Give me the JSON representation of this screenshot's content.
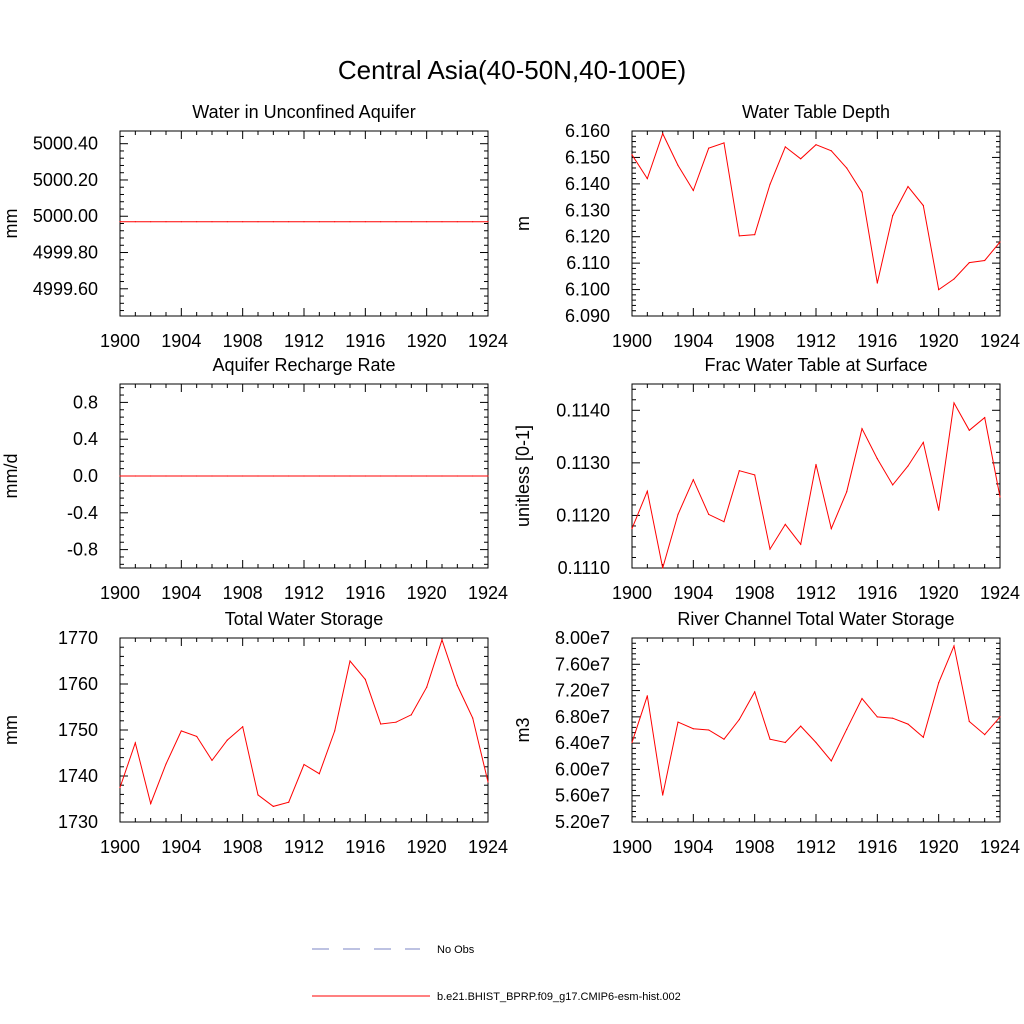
{
  "figure": {
    "title": "Central Asia(40-50N,40-100E)"
  },
  "legend": [
    {
      "label": "No Obs",
      "color": "#7b86c6",
      "dash": true
    },
    {
      "label": "b.e21.BHIST_BPRP.f09_g17.CMIP6-esm-hist.002",
      "color": "#ff0000",
      "dash": false
    }
  ],
  "colors": {
    "series": "#ff0000",
    "obs": "#7b86c6"
  },
  "chart_data": [
    {
      "type": "line",
      "title": "Water in Unconfined Aquifer",
      "xlabel": "",
      "ylabel": "mm",
      "xlim": [
        1900,
        1924
      ],
      "ylim": [
        4999.45,
        5000.47
      ],
      "xticks": [
        1900,
        1904,
        1908,
        1912,
        1916,
        1920,
        1924
      ],
      "xtick_labels": [
        "1900",
        "1904",
        "1908",
        "1912",
        "1916",
        "1920",
        "1924"
      ],
      "yticks": [
        4999.6,
        4999.8,
        5000.0,
        5000.2,
        5000.4
      ],
      "ytick_labels": [
        "4999.60",
        "4999.80",
        "5000.00",
        "5000.20",
        "5000.40"
      ],
      "series": [
        {
          "x": [
            1900,
            1901,
            1902,
            1903,
            1904,
            1905,
            1906,
            1907,
            1908,
            1909,
            1910,
            1911,
            1912,
            1913,
            1914,
            1915,
            1916,
            1917,
            1918,
            1919,
            1920,
            1921,
            1922,
            1923,
            1924
          ],
          "values": [
            4999.97,
            4999.97,
            4999.97,
            4999.97,
            4999.97,
            4999.97,
            4999.97,
            4999.97,
            4999.97,
            4999.97,
            4999.97,
            4999.97,
            4999.97,
            4999.97,
            4999.97,
            4999.97,
            4999.97,
            4999.97,
            4999.97,
            4999.97,
            4999.97,
            4999.97,
            4999.97,
            4999.97,
            4999.97
          ]
        }
      ]
    },
    {
      "type": "line",
      "title": "Water Table Depth",
      "xlabel": "",
      "ylabel": "m",
      "xlim": [
        1900,
        1924
      ],
      "ylim": [
        6.09,
        6.16
      ],
      "xticks": [
        1900,
        1904,
        1908,
        1912,
        1916,
        1920,
        1924
      ],
      "xtick_labels": [
        "1900",
        "1904",
        "1908",
        "1912",
        "1916",
        "1920",
        "1924"
      ],
      "yticks": [
        6.09,
        6.1,
        6.11,
        6.12,
        6.13,
        6.14,
        6.15,
        6.16
      ],
      "ytick_labels": [
        "6.090",
        "6.100",
        "6.110",
        "6.120",
        "6.130",
        "6.140",
        "6.150",
        "6.160"
      ],
      "series": [
        {
          "x": [
            1900,
            1901,
            1902,
            1903,
            1904,
            1905,
            1906,
            1907,
            1908,
            1909,
            1910,
            1911,
            1912,
            1913,
            1914,
            1915,
            1916,
            1917,
            1918,
            1919,
            1920,
            1921,
            1922,
            1923,
            1924
          ],
          "values": [
            6.151,
            6.142,
            6.159,
            6.147,
            6.1375,
            6.1535,
            6.1555,
            6.1203,
            6.1208,
            6.1398,
            6.154,
            6.1495,
            6.1548,
            6.1525,
            6.146,
            6.1368,
            6.1025,
            6.128,
            6.139,
            6.1318,
            6.1,
            6.104,
            6.1102,
            6.111,
            6.118
          ]
        }
      ]
    },
    {
      "type": "line",
      "title": "Aquifer Recharge Rate",
      "xlabel": "",
      "ylabel": "mm/d",
      "xlim": [
        1900,
        1924
      ],
      "ylim": [
        -1.0,
        1.0
      ],
      "xticks": [
        1900,
        1904,
        1908,
        1912,
        1916,
        1920,
        1924
      ],
      "xtick_labels": [
        "1900",
        "1904",
        "1908",
        "1912",
        "1916",
        "1920",
        "1924"
      ],
      "yticks": [
        -0.8,
        -0.4,
        0.0,
        0.4,
        0.8
      ],
      "ytick_labels": [
        "-0.8",
        "-0.4",
        "0.0",
        "0.4",
        "0.8"
      ],
      "series": [
        {
          "x": [
            1900,
            1901,
            1902,
            1903,
            1904,
            1905,
            1906,
            1907,
            1908,
            1909,
            1910,
            1911,
            1912,
            1913,
            1914,
            1915,
            1916,
            1917,
            1918,
            1919,
            1920,
            1921,
            1922,
            1923,
            1924
          ],
          "values": [
            0,
            0,
            0,
            0,
            0,
            0,
            0,
            0,
            0,
            0,
            0,
            0,
            0,
            0,
            0,
            0,
            0,
            0,
            0,
            0,
            0,
            0,
            0,
            0,
            0
          ]
        }
      ]
    },
    {
      "type": "line",
      "title": "Frac Water Table at Surface",
      "xlabel": "",
      "ylabel": "unitless [0-1]",
      "xlim": [
        1900,
        1924
      ],
      "ylim": [
        0.111,
        0.1145
      ],
      "xticks": [
        1900,
        1904,
        1908,
        1912,
        1916,
        1920,
        1924
      ],
      "xtick_labels": [
        "1900",
        "1904",
        "1908",
        "1912",
        "1916",
        "1920",
        "1924"
      ],
      "yticks": [
        0.111,
        0.112,
        0.113,
        0.114
      ],
      "ytick_labels": [
        "0.1110",
        "0.1120",
        "0.1130",
        "0.1140"
      ],
      "series": [
        {
          "x": [
            1900,
            1901,
            1902,
            1903,
            1904,
            1905,
            1906,
            1907,
            1908,
            1909,
            1910,
            1911,
            1912,
            1913,
            1914,
            1915,
            1916,
            1917,
            1918,
            1919,
            1920,
            1921,
            1922,
            1923,
            1924
          ],
          "values": [
            0.11175,
            0.11246,
            0.111,
            0.11202,
            0.11268,
            0.11202,
            0.11188,
            0.11285,
            0.11277,
            0.11136,
            0.11183,
            0.11145,
            0.11297,
            0.11175,
            0.11245,
            0.11365,
            0.11308,
            0.11258,
            0.11294,
            0.11339,
            0.1121,
            0.11414,
            0.11362,
            0.11386,
            0.11235
          ]
        }
      ]
    },
    {
      "type": "line",
      "title": "Total Water Storage",
      "xlabel": "",
      "ylabel": "mm",
      "xlim": [
        1900,
        1924
      ],
      "ylim": [
        1730,
        1770
      ],
      "xticks": [
        1900,
        1904,
        1908,
        1912,
        1916,
        1920,
        1924
      ],
      "xtick_labels": [
        "1900",
        "1904",
        "1908",
        "1912",
        "1916",
        "1920",
        "1924"
      ],
      "yticks": [
        1730,
        1740,
        1750,
        1760,
        1770
      ],
      "ytick_labels": [
        "1730",
        "1740",
        "1750",
        "1760",
        "1770"
      ],
      "series": [
        {
          "x": [
            1900,
            1901,
            1902,
            1903,
            1904,
            1905,
            1906,
            1907,
            1908,
            1909,
            1910,
            1911,
            1912,
            1913,
            1914,
            1915,
            1916,
            1917,
            1918,
            1919,
            1920,
            1921,
            1922,
            1923,
            1924
          ],
          "values": [
            1737.5,
            1747.2,
            1734.0,
            1742.6,
            1749.8,
            1748.6,
            1743.4,
            1747.8,
            1750.7,
            1735.9,
            1733.4,
            1734.3,
            1742.5,
            1740.5,
            1749.8,
            1765.0,
            1761.0,
            1751.3,
            1751.7,
            1753.3,
            1759.3,
            1769.6,
            1759.7,
            1752.6,
            1738.7
          ]
        }
      ]
    },
    {
      "type": "line",
      "title": "River Channel Total Water Storage",
      "xlabel": "",
      "ylabel": "m3",
      "xlim": [
        1900,
        1924
      ],
      "ylim": [
        52000000.0,
        80000000.0
      ],
      "xticks": [
        1900,
        1904,
        1908,
        1912,
        1916,
        1920,
        1924
      ],
      "xtick_labels": [
        "1900",
        "1904",
        "1908",
        "1912",
        "1916",
        "1920",
        "1924"
      ],
      "yticks": [
        52000000.0,
        56000000.0,
        60000000.0,
        64000000.0,
        68000000.0,
        72000000.0,
        76000000.0,
        80000000.0
      ],
      "ytick_labels": [
        "5.20e7",
        "5.60e7",
        "6.00e7",
        "6.40e7",
        "6.80e7",
        "7.20e7",
        "7.60e7",
        "8.00e7"
      ],
      "series": [
        {
          "x": [
            1900,
            1901,
            1902,
            1903,
            1904,
            1905,
            1906,
            1907,
            1908,
            1909,
            1910,
            1911,
            1912,
            1913,
            1914,
            1915,
            1916,
            1917,
            1918,
            1919,
            1920,
            1921,
            1922,
            1923,
            1924
          ],
          "values": [
            64100000.0,
            71200000.0,
            56100000.0,
            67200000.0,
            66200000.0,
            66000000.0,
            64600000.0,
            67600000.0,
            71800000.0,
            64600000.0,
            64100000.0,
            66600000.0,
            64100000.0,
            61300000.0,
            66100000.0,
            70800000.0,
            68000000.0,
            67800000.0,
            66900000.0,
            64900000.0,
            73200000.0,
            78800000.0,
            67300000.0,
            65300000.0,
            68000000.0
          ]
        }
      ]
    }
  ]
}
